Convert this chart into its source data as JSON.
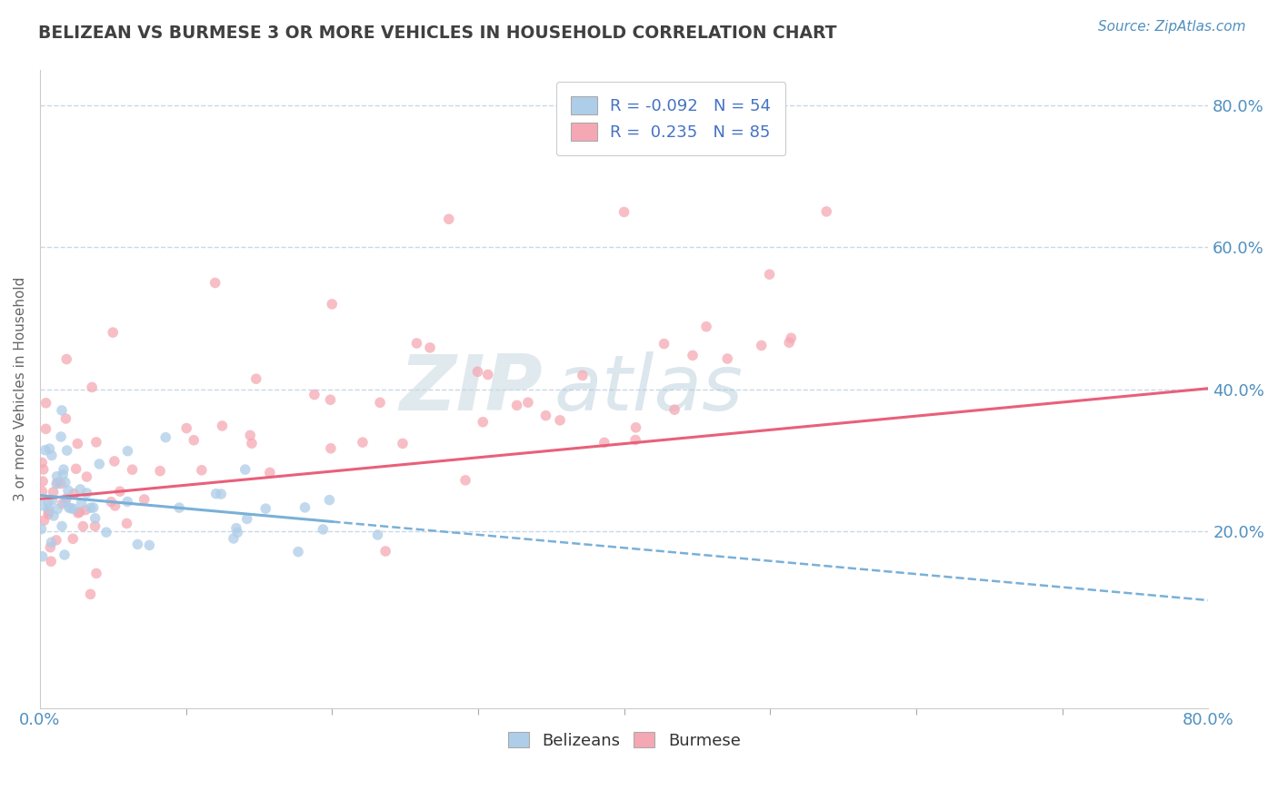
{
  "title": "BELIZEAN VS BURMESE 3 OR MORE VEHICLES IN HOUSEHOLD CORRELATION CHART",
  "source": "Source: ZipAtlas.com",
  "ylabel": "3 or more Vehicles in Household",
  "xlim": [
    0.0,
    80.0
  ],
  "ylim": [
    -5.0,
    85.0
  ],
  "ytick_values": [
    20.0,
    40.0,
    60.0,
    80.0
  ],
  "watermark_zip": "ZIP",
  "watermark_atlas": "atlas",
  "belizean_R": -0.092,
  "belizean_N": 54,
  "burmese_R": 0.235,
  "burmese_N": 85,
  "belizean_color": "#aecde8",
  "burmese_color": "#f5a8b4",
  "belizean_line_color": "#7ab0d8",
  "burmese_line_color": "#e8607a",
  "title_color": "#404040",
  "source_color": "#5090c0",
  "grid_color": "#c8d8e8",
  "legend_text_color": "#4472c4",
  "bel_line_intercept": 25.0,
  "bel_line_slope": -0.185,
  "bur_line_intercept": 24.5,
  "bur_line_slope": 0.195,
  "bel_solid_x_max": 20.0
}
